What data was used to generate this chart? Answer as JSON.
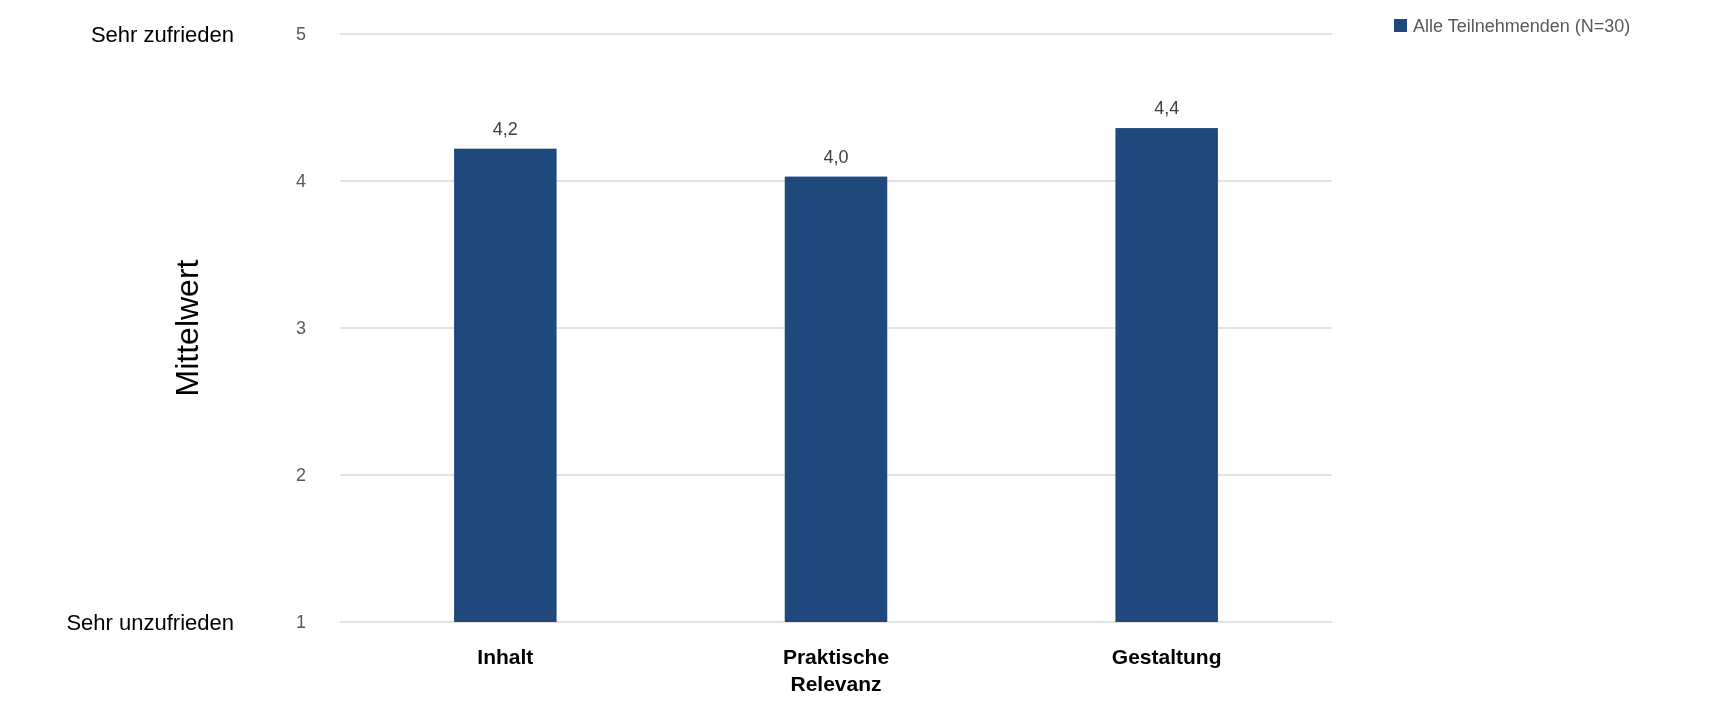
{
  "chart_data": {
    "type": "bar",
    "ylabel": "Mittelwert",
    "categories": [
      "Inhalt",
      "Praktische Relevanz",
      "Gestaltung"
    ],
    "series": [
      {
        "name": "Alle Teilnehmenden (N=30)",
        "color": "#1f497d",
        "values": [
          4.22,
          4.03,
          4.36
        ],
        "value_labels": [
          "4,2",
          "4,0",
          "4,4"
        ]
      }
    ],
    "ylim": [
      1,
      5
    ],
    "yticks": [
      1,
      2,
      3,
      4,
      5
    ],
    "grid": "y",
    "legend": "top right",
    "annotations": [
      "Sehr zufrieden",
      "Sehr unzufrieden"
    ]
  }
}
